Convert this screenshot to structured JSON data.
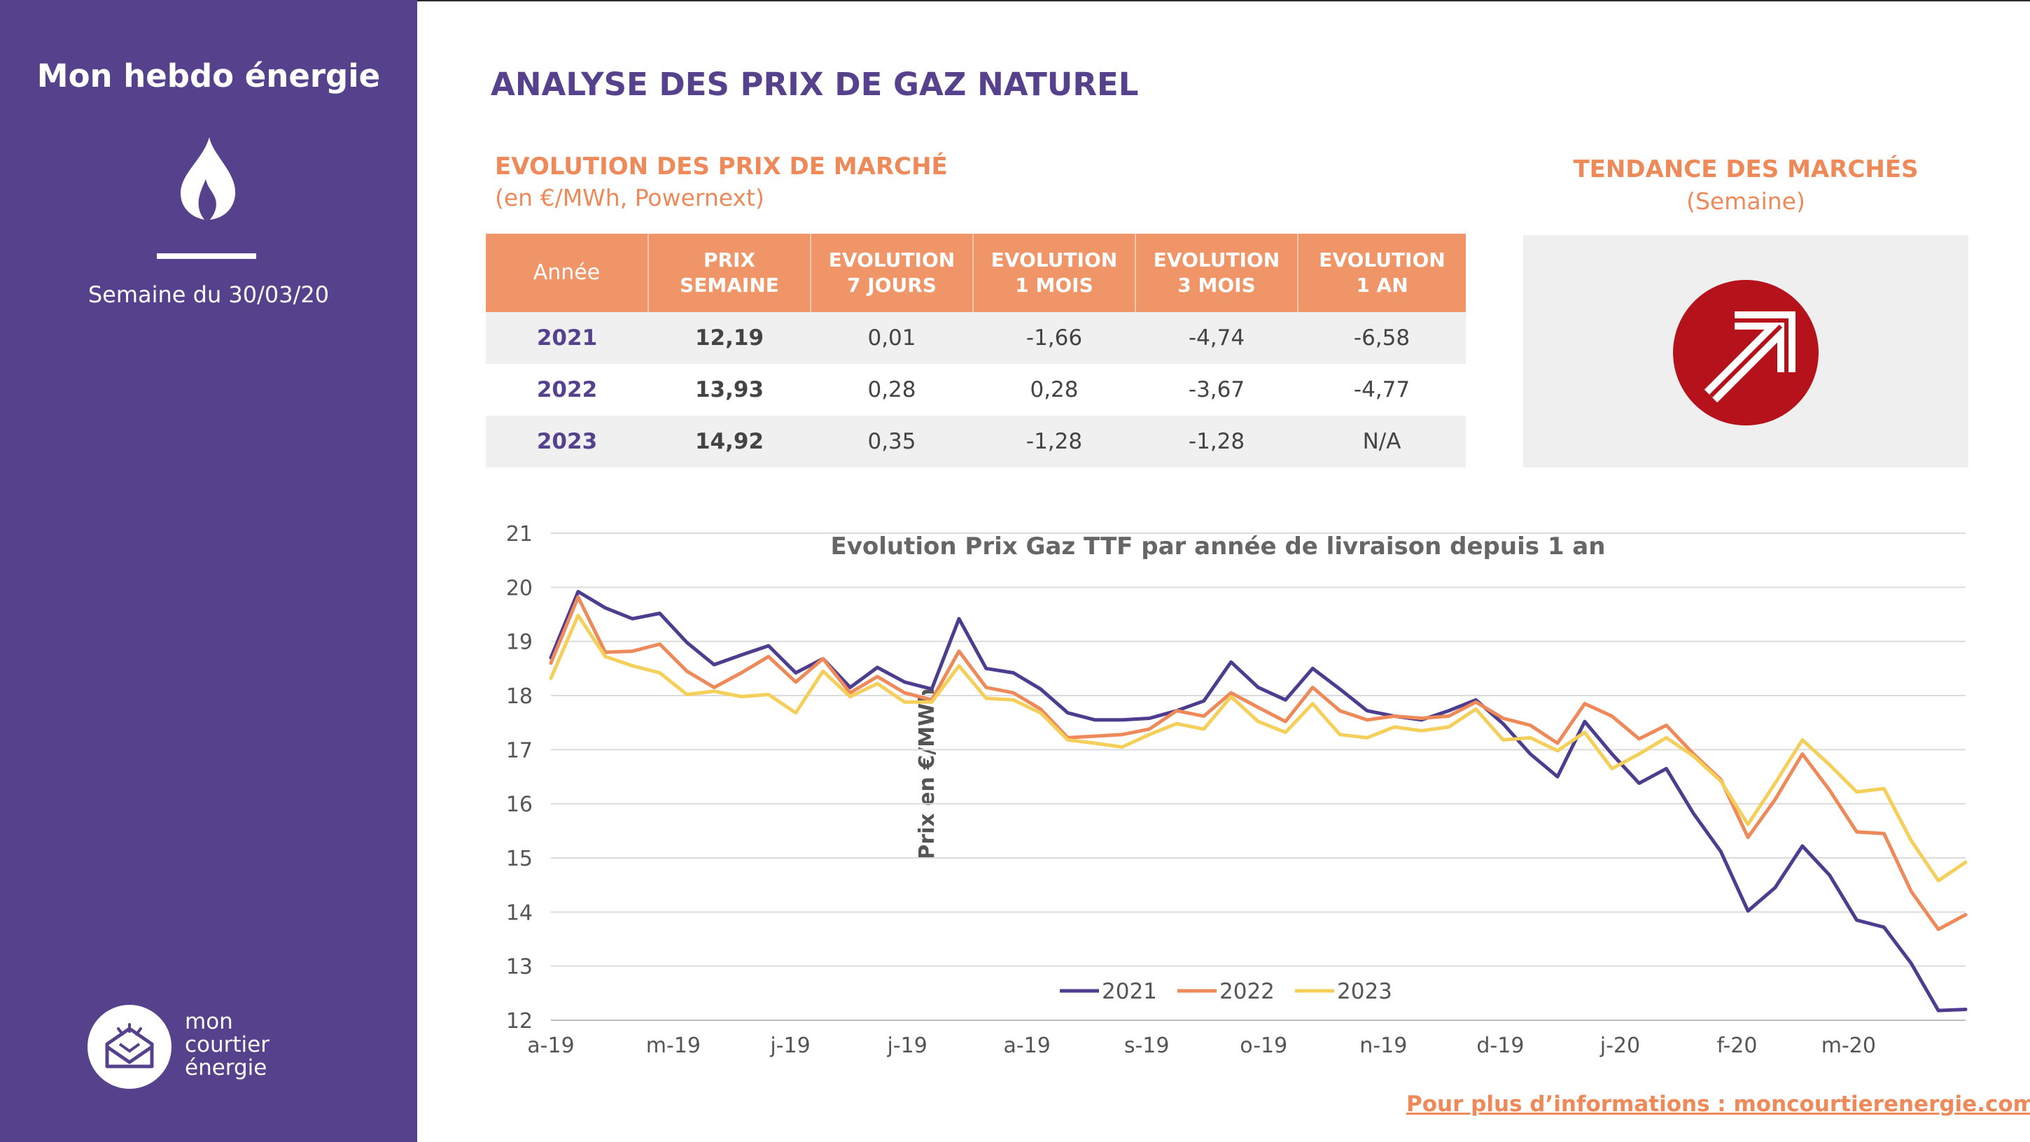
{
  "sidebar": {
    "title": "Mon hebdo énergie",
    "week": "Semaine du 30/03/20",
    "logo": {
      "line1": "mon",
      "line2": "courtier",
      "line3": "énergie"
    },
    "icon": "flame-icon"
  },
  "header": {
    "title": "ANALYSE DES PRIX DE GAZ NATUREL"
  },
  "market": {
    "title": "EVOLUTION DES PRIX DE MARCHÉ",
    "unit": "(en €/MWh, Powernext)",
    "columns": [
      {
        "line1": "Année",
        "line2": ""
      },
      {
        "line1": "PRIX",
        "line2": "SEMAINE"
      },
      {
        "line1": "EVOLUTION",
        "line2": "7 JOURS"
      },
      {
        "line1": "EVOLUTION",
        "line2": "1 MOIS"
      },
      {
        "line1": "EVOLUTION",
        "line2": "3 MOIS"
      },
      {
        "line1": "EVOLUTION",
        "line2": "1 AN"
      }
    ],
    "rows": [
      {
        "year": "2021",
        "price": "12,19",
        "d7": "0,01",
        "m1": "-1,66",
        "m3": "-4,74",
        "y1": "-6,58"
      },
      {
        "year": "2022",
        "price": "13,93",
        "d7": "0,28",
        "m1": "0,28",
        "m3": "-3,67",
        "y1": "-4,77"
      },
      {
        "year": "2023",
        "price": "14,92",
        "d7": "0,35",
        "m1": "-1,28",
        "m3": "-1,28",
        "y1": "N/A"
      }
    ]
  },
  "trend": {
    "title": "TENDANCE DES MARCHÉS",
    "subtitle": "(Semaine)",
    "icon": "trend-up-arrow-icon",
    "color": "#b5121b"
  },
  "chart_data": {
    "type": "line",
    "title": "Evolution Prix Gaz TTF par année de livraison depuis 1 an",
    "xlabel": "",
    "ylabel": "Prix en €/MWh",
    "ylim": [
      12,
      21
    ],
    "yticks": [
      "12",
      "13",
      "14",
      "15",
      "16",
      "17",
      "18",
      "19",
      "20",
      "21"
    ],
    "xticks": [
      {
        "label": "a-19",
        "i": 0
      },
      {
        "label": "m-19",
        "i": 4.5
      },
      {
        "label": "j-19",
        "i": 8.8
      },
      {
        "label": "j-19",
        "i": 13.1
      },
      {
        "label": "a-19",
        "i": 17.5
      },
      {
        "label": "s-19",
        "i": 21.9
      },
      {
        "label": "o-19",
        "i": 26.2
      },
      {
        "label": "n-19",
        "i": 30.6
      },
      {
        "label": "d-19",
        "i": 34.9
      },
      {
        "label": "j-20",
        "i": 39.3
      },
      {
        "label": "f-20",
        "i": 43.6
      },
      {
        "label": "m-20",
        "i": 47.7
      }
    ],
    "grid": true,
    "legend_position": "bottom-center",
    "series": [
      {
        "name": "2021",
        "color": "#4e3d8f",
        "values": [
          18.7,
          19.92,
          19.62,
          19.42,
          19.52,
          18.98,
          18.57,
          18.75,
          18.92,
          18.42,
          18.68,
          18.15,
          18.52,
          18.25,
          18.12,
          19.42,
          18.5,
          18.42,
          18.12,
          17.68,
          17.55,
          17.55,
          17.58,
          17.72,
          17.9,
          18.62,
          18.15,
          17.92,
          18.5,
          18.12,
          17.72,
          17.62,
          17.55,
          17.72,
          17.92,
          17.48,
          16.92,
          16.5,
          17.52,
          16.92,
          16.38,
          16.65,
          15.82,
          15.12,
          14.02,
          14.45,
          15.22,
          14.68,
          13.85,
          13.72,
          13.05,
          12.18,
          12.2
        ]
      },
      {
        "name": "2022",
        "color": "#ee8a5a",
        "values": [
          18.6,
          19.82,
          18.8,
          18.82,
          18.95,
          18.45,
          18.15,
          18.42,
          18.72,
          18.25,
          18.68,
          18.05,
          18.35,
          18.05,
          17.92,
          18.82,
          18.15,
          18.05,
          17.75,
          17.22,
          17.25,
          17.28,
          17.38,
          17.72,
          17.62,
          18.05,
          17.78,
          17.52,
          18.15,
          17.72,
          17.55,
          17.62,
          17.58,
          17.62,
          17.88,
          17.58,
          17.45,
          17.12,
          17.85,
          17.62,
          17.2,
          17.45,
          16.92,
          16.45,
          15.38,
          16.08,
          16.92,
          16.25,
          15.48,
          15.45,
          14.38,
          13.68,
          13.95
        ]
      },
      {
        "name": "2023",
        "color": "#f4cf5a",
        "values": [
          18.32,
          19.48,
          18.72,
          18.55,
          18.42,
          18.02,
          18.08,
          17.98,
          18.02,
          17.68,
          18.45,
          17.98,
          18.22,
          17.88,
          17.88,
          18.55,
          17.95,
          17.92,
          17.68,
          17.18,
          17.12,
          17.05,
          17.28,
          17.48,
          17.38,
          17.98,
          17.52,
          17.32,
          17.85,
          17.28,
          17.22,
          17.42,
          17.35,
          17.42,
          17.75,
          17.18,
          17.22,
          16.98,
          17.32,
          16.65,
          16.92,
          17.22,
          16.88,
          16.42,
          15.62,
          16.38,
          17.18,
          16.72,
          16.22,
          16.28,
          15.32,
          14.58,
          14.92
        ]
      }
    ]
  },
  "footer": {
    "link_text": "Pour plus d’informations : moncourtierenergie.com"
  }
}
